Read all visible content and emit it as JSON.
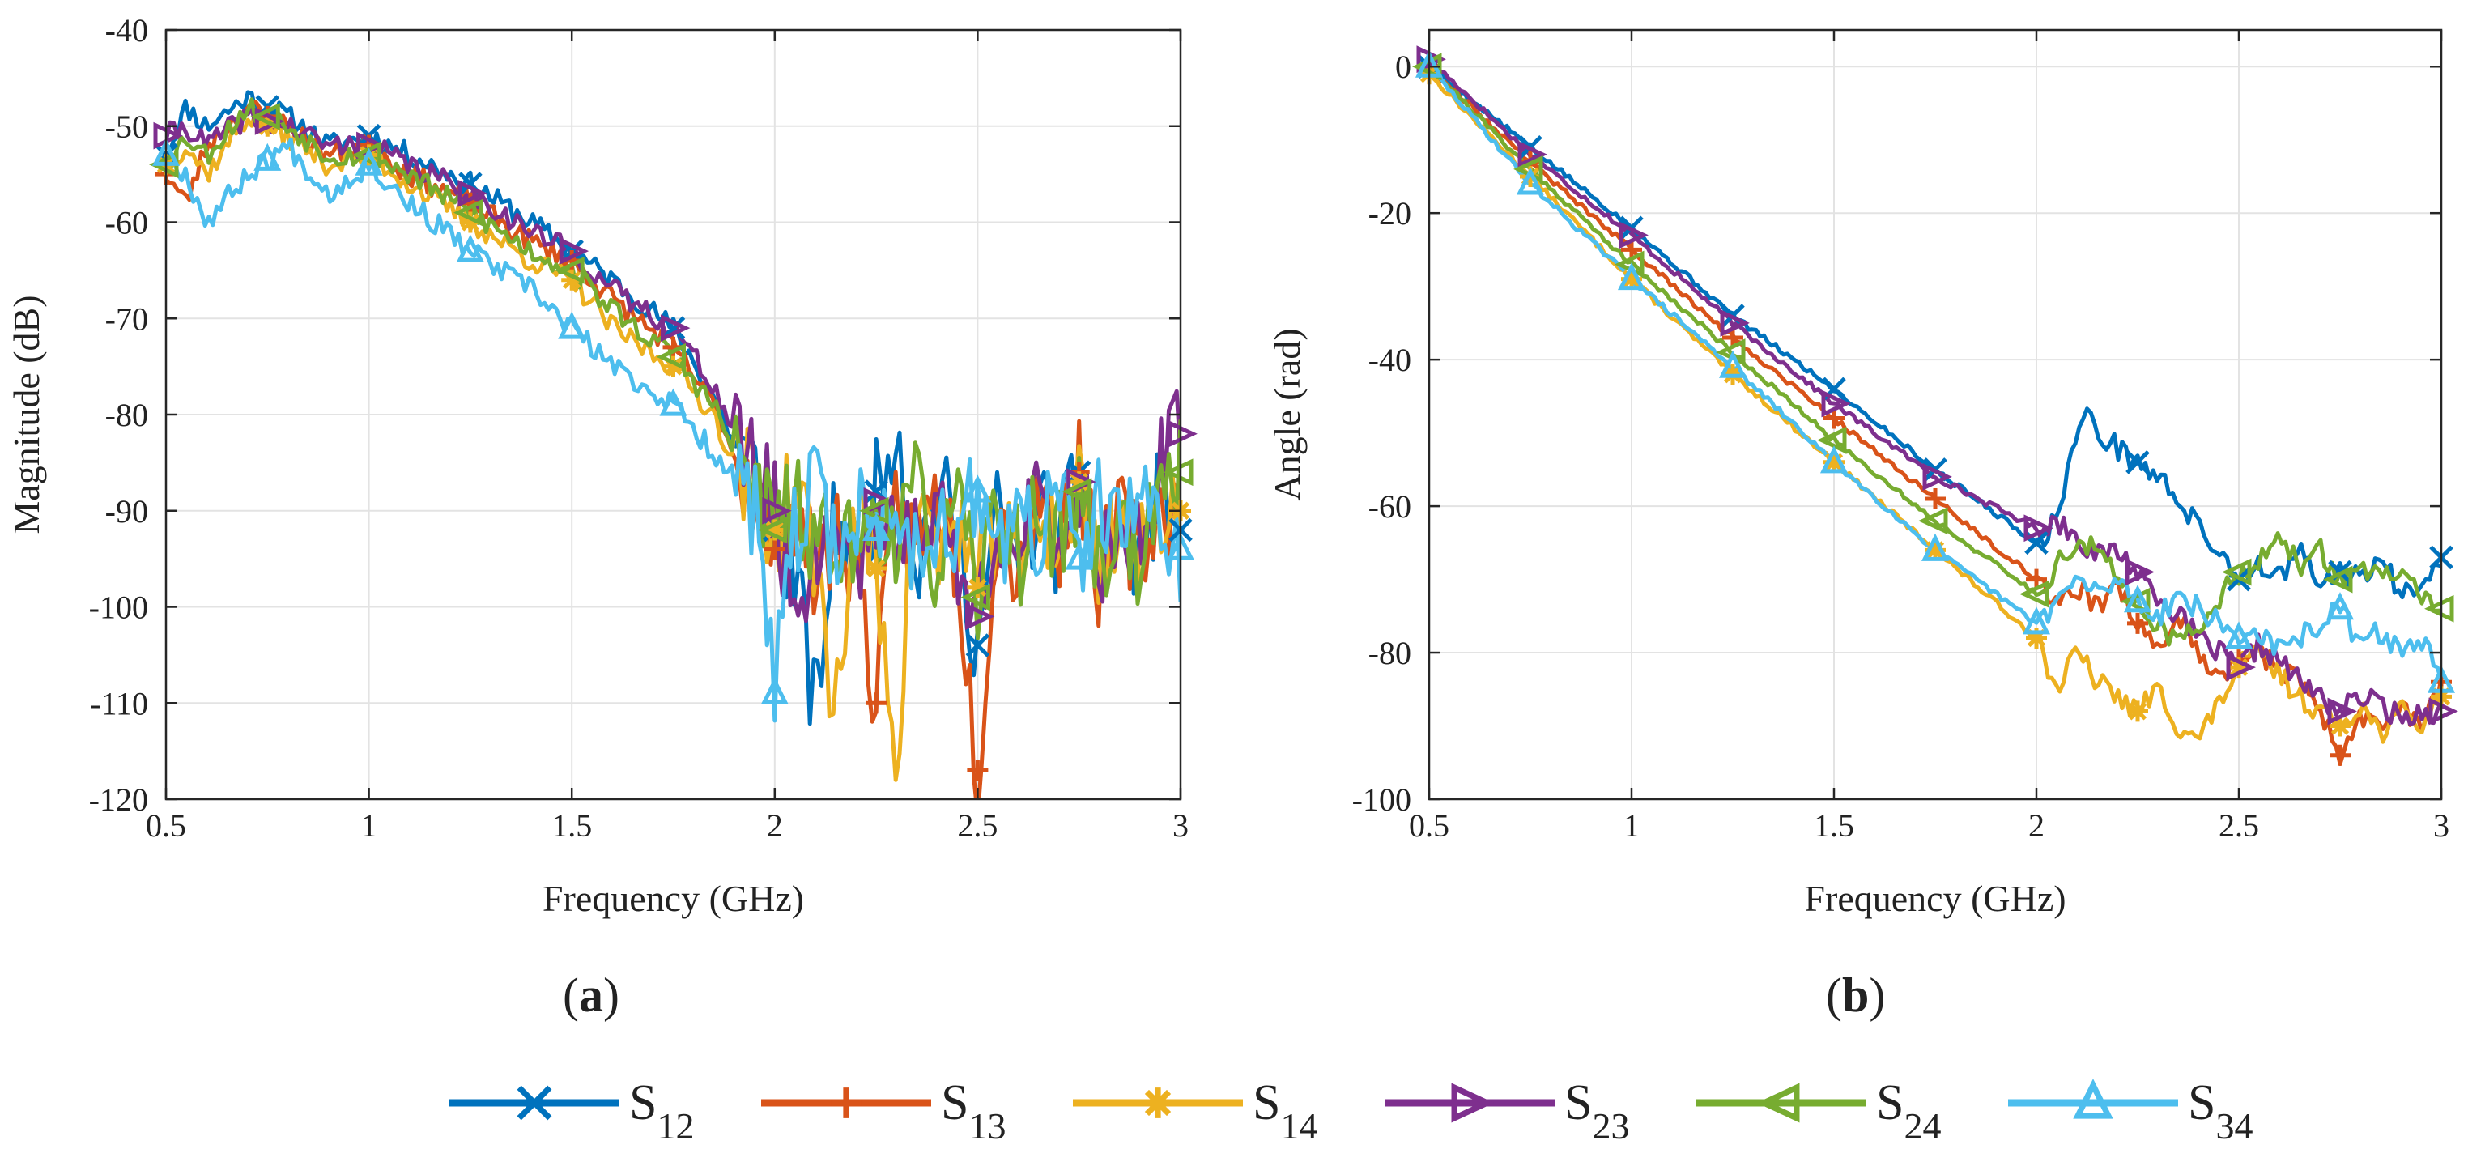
{
  "colors": {
    "S12": "#0072BD",
    "S13": "#D95319",
    "S14": "#EDB120",
    "S23": "#7E2F8E",
    "S24": "#77AC30",
    "S34": "#4DBEEE",
    "grid": "#e3e3e3",
    "axis": "#262626"
  },
  "panel_labels": {
    "a": "a",
    "b": "b"
  },
  "legend": [
    {
      "key": "S12",
      "base": "S",
      "sub": "12",
      "marker": "x"
    },
    {
      "key": "S13",
      "base": "S",
      "sub": "13",
      "marker": "plus"
    },
    {
      "key": "S14",
      "base": "S",
      "sub": "14",
      "marker": "star"
    },
    {
      "key": "S23",
      "base": "S",
      "sub": "23",
      "marker": "tri-right"
    },
    {
      "key": "S24",
      "base": "S",
      "sub": "24",
      "marker": "tri-left"
    },
    {
      "key": "S34",
      "base": "S",
      "sub": "34",
      "marker": "tri-up"
    }
  ],
  "chart_data": [
    {
      "id": "a",
      "type": "line",
      "title": "",
      "xlabel": "Frequency (GHz)",
      "ylabel": "Magnitude (dB)",
      "xlim": [
        0.5,
        3
      ],
      "ylim": [
        -120,
        -40
      ],
      "xticks": [
        0.5,
        1,
        1.5,
        2,
        2.5,
        3
      ],
      "xtick_labels": [
        "0.5",
        "1",
        "1.5",
        "2",
        "2.5",
        "3"
      ],
      "yticks": [
        -120,
        -110,
        -100,
        -90,
        -80,
        -70,
        -60,
        -50,
        -40
      ],
      "ytick_labels": [
        "-120",
        "-110",
        "-100",
        "-90",
        "-80",
        "-70",
        "-60",
        "-50",
        "-40"
      ],
      "grid": true,
      "marker_x": [
        0.5,
        0.75,
        1,
        1.25,
        1.5,
        1.75,
        2,
        2.25,
        2.5,
        2.75,
        3
      ],
      "series": [
        {
          "key": "S12",
          "name": "S12",
          "marker": "x",
          "seed": 11,
          "x": [
            0.5,
            0.55,
            0.6,
            0.7,
            0.8,
            0.9,
            1.0,
            1.1,
            1.25,
            1.4,
            1.5,
            1.6,
            1.75,
            1.85,
            1.9,
            1.95,
            2.0,
            2.05,
            2.1,
            2.15,
            2.2,
            2.25,
            2.3,
            2.35,
            2.4,
            2.45,
            2.5,
            2.55,
            2.6,
            2.65,
            2.7,
            2.75,
            2.8,
            2.85,
            2.9,
            2.95,
            3.0
          ],
          "y": [
            -53,
            -48,
            -50,
            -47,
            -49,
            -52,
            -51,
            -53,
            -56,
            -60,
            -63,
            -66,
            -71,
            -78,
            -83,
            -86,
            -92,
            -96,
            -112,
            -90,
            -95,
            -88,
            -80,
            -96,
            -87,
            -93,
            -104,
            -90,
            -96,
            -89,
            -94,
            -86,
            -98,
            -90,
            -95,
            -88,
            -92
          ]
        },
        {
          "key": "S13",
          "name": "S13",
          "marker": "plus",
          "seed": 23,
          "x": [
            0.5,
            0.55,
            0.6,
            0.7,
            0.8,
            0.9,
            1.0,
            1.1,
            1.25,
            1.4,
            1.5,
            1.6,
            1.75,
            1.85,
            1.9,
            1.95,
            2.0,
            2.05,
            2.1,
            2.15,
            2.2,
            2.25,
            2.3,
            2.35,
            2.4,
            2.45,
            2.5,
            2.55,
            2.6,
            2.65,
            2.7,
            2.75,
            2.8,
            2.85,
            2.9,
            2.95,
            3.0
          ],
          "y": [
            -55,
            -58,
            -52,
            -48,
            -50,
            -53,
            -52,
            -55,
            -58,
            -62,
            -64,
            -68,
            -73,
            -79,
            -84,
            -88,
            -94,
            -90,
            -97,
            -92,
            -95,
            -110,
            -89,
            -94,
            -88,
            -95,
            -117,
            -90,
            -96,
            -88,
            -93,
            -86,
            -97,
            -91,
            -95,
            -89,
            -90
          ]
        },
        {
          "key": "S14",
          "name": "S14",
          "marker": "star",
          "seed": 37,
          "x": [
            0.5,
            0.55,
            0.6,
            0.7,
            0.8,
            0.9,
            1.0,
            1.1,
            1.25,
            1.4,
            1.5,
            1.6,
            1.75,
            1.85,
            1.9,
            1.95,
            2.0,
            2.05,
            2.1,
            2.15,
            2.2,
            2.25,
            2.3,
            2.35,
            2.4,
            2.45,
            2.5,
            2.55,
            2.6,
            2.65,
            2.7,
            2.75,
            2.8,
            2.85,
            2.9,
            2.95,
            3.0
          ],
          "y": [
            -54,
            -52,
            -55,
            -49,
            -51,
            -54,
            -53,
            -56,
            -60,
            -64,
            -66,
            -71,
            -75,
            -80,
            -85,
            -87,
            -92,
            -88,
            -95,
            -111,
            -90,
            -96,
            -115,
            -88,
            -95,
            -91,
            -98,
            -90,
            -97,
            -89,
            -94,
            -87,
            -96,
            -90,
            -95,
            -89,
            -90
          ]
        },
        {
          "key": "S23",
          "name": "S23",
          "marker": "tri-right",
          "seed": 41,
          "x": [
            0.5,
            0.55,
            0.6,
            0.7,
            0.8,
            0.9,
            1.0,
            1.1,
            1.25,
            1.4,
            1.5,
            1.6,
            1.75,
            1.85,
            1.9,
            1.95,
            2.0,
            2.05,
            2.1,
            2.15,
            2.2,
            2.25,
            2.3,
            2.35,
            2.4,
            2.45,
            2.5,
            2.55,
            2.6,
            2.65,
            2.7,
            2.75,
            2.8,
            2.85,
            2.9,
            2.95,
            3.0
          ],
          "y": [
            -51,
            -50,
            -52,
            -49,
            -50,
            -52,
            -52,
            -54,
            -57,
            -61,
            -63,
            -67,
            -71,
            -77,
            -82,
            -86,
            -90,
            -100,
            -94,
            -91,
            -96,
            -89,
            -95,
            -92,
            -88,
            -97,
            -101,
            -90,
            -95,
            -89,
            -94,
            -87,
            -96,
            -90,
            -94,
            -86,
            -82
          ]
        },
        {
          "key": "S24",
          "name": "S24",
          "marker": "tri-left",
          "seed": 53,
          "x": [
            0.5,
            0.55,
            0.6,
            0.7,
            0.8,
            0.9,
            1.0,
            1.1,
            1.25,
            1.4,
            1.5,
            1.6,
            1.75,
            1.85,
            1.9,
            1.95,
            2.0,
            2.05,
            2.1,
            2.15,
            2.2,
            2.25,
            2.3,
            2.35,
            2.4,
            2.45,
            2.5,
            2.55,
            2.6,
            2.65,
            2.7,
            2.75,
            2.8,
            2.85,
            2.9,
            2.95,
            3.0
          ],
          "y": [
            -54,
            -51,
            -53,
            -48,
            -50,
            -53,
            -53,
            -55,
            -59,
            -63,
            -65,
            -69,
            -74,
            -79,
            -84,
            -87,
            -92,
            -89,
            -96,
            -91,
            -95,
            -90,
            -93,
            -88,
            -96,
            -90,
            -99,
            -89,
            -95,
            -90,
            -93,
            -88,
            -96,
            -91,
            -95,
            -90,
            -86
          ]
        },
        {
          "key": "S34",
          "name": "S34",
          "marker": "tri-up",
          "seed": 67,
          "x": [
            0.5,
            0.55,
            0.6,
            0.7,
            0.8,
            0.9,
            1.0,
            1.1,
            1.25,
            1.4,
            1.5,
            1.6,
            1.75,
            1.85,
            1.9,
            1.95,
            2.0,
            2.05,
            2.1,
            2.15,
            2.2,
            2.25,
            2.3,
            2.35,
            2.4,
            2.45,
            2.5,
            2.55,
            2.6,
            2.65,
            2.7,
            2.75,
            2.8,
            2.85,
            2.9,
            2.95,
            3.0
          ],
          "y": [
            -53,
            -55,
            -60,
            -55,
            -52,
            -57,
            -54,
            -58,
            -63,
            -67,
            -71,
            -75,
            -79,
            -84,
            -86,
            -90,
            -109,
            -92,
            -88,
            -94,
            -90,
            -92,
            -89,
            -95,
            -90,
            -93,
            -88,
            -94,
            -90,
            -93,
            -88,
            -95,
            -90,
            -93,
            -88,
            -92,
            -94
          ]
        }
      ]
    },
    {
      "id": "b",
      "type": "line",
      "title": "",
      "xlabel": "Frequency (GHz)",
      "ylabel": "Angle (rad)",
      "xlim": [
        0.5,
        3
      ],
      "ylim": [
        -100,
        5
      ],
      "xticks": [
        0.5,
        1,
        1.5,
        2,
        2.5,
        3
      ],
      "xtick_labels": [
        "0.5",
        "1",
        "1.5",
        "2",
        "2.5",
        "3"
      ],
      "yticks": [
        -100,
        -80,
        -60,
        -40,
        -20,
        0
      ],
      "ytick_labels": [
        "-100",
        "-80",
        "-60",
        "-40",
        "-20",
        "0"
      ],
      "grid": true,
      "marker_x": [
        0.5,
        0.75,
        1,
        1.25,
        1.5,
        1.75,
        2,
        2.25,
        2.5,
        2.75,
        3
      ],
      "series": [
        {
          "key": "S12",
          "name": "S12",
          "marker": "x",
          "seed": 5,
          "x": [
            0.5,
            0.75,
            1.0,
            1.25,
            1.5,
            1.75,
            2.0,
            2.05,
            2.08,
            2.12,
            2.15,
            2.2,
            2.25,
            2.3,
            2.35,
            2.4,
            2.45,
            2.5,
            2.55,
            2.6,
            2.65,
            2.7,
            2.75,
            2.8,
            2.85,
            2.9,
            2.95,
            3.0
          ],
          "y": [
            0,
            -11,
            -22,
            -34,
            -44,
            -55,
            -65,
            -62,
            -54,
            -47,
            -50,
            -52,
            -54,
            -56,
            -59,
            -63,
            -66,
            -70,
            -68,
            -70,
            -66,
            -71,
            -69,
            -70,
            -67,
            -72,
            -70,
            -67
          ]
        },
        {
          "key": "S13",
          "name": "S13",
          "marker": "plus",
          "seed": 9,
          "x": [
            0.5,
            0.75,
            1.0,
            1.25,
            1.5,
            1.75,
            2.0,
            2.05,
            2.1,
            2.15,
            2.2,
            2.25,
            2.3,
            2.35,
            2.4,
            2.45,
            2.5,
            2.55,
            2.6,
            2.65,
            2.7,
            2.75,
            2.8,
            2.85,
            2.9,
            2.95,
            3.0
          ],
          "y": [
            0,
            -13,
            -25,
            -37,
            -48,
            -59,
            -70,
            -73,
            -71,
            -74,
            -70,
            -76,
            -79,
            -75,
            -80,
            -83,
            -81,
            -80,
            -82,
            -84,
            -88,
            -94,
            -89,
            -90,
            -87,
            -90,
            -84
          ]
        },
        {
          "key": "S14",
          "name": "S14",
          "marker": "star",
          "seed": 13,
          "x": [
            0.5,
            0.75,
            1.0,
            1.25,
            1.5,
            1.75,
            2.0,
            2.05,
            2.1,
            2.15,
            2.2,
            2.25,
            2.3,
            2.35,
            2.4,
            2.45,
            2.5,
            2.55,
            2.6,
            2.65,
            2.7,
            2.75,
            2.8,
            2.85,
            2.9,
            2.95,
            3.0
          ],
          "y": [
            -1,
            -15,
            -29,
            -42,
            -54,
            -66,
            -78,
            -85,
            -80,
            -84,
            -86,
            -88,
            -85,
            -90,
            -92,
            -87,
            -82,
            -80,
            -83,
            -86,
            -88,
            -90,
            -87,
            -91,
            -88,
            -90,
            -86
          ]
        },
        {
          "key": "S23",
          "name": "S23",
          "marker": "tri-right",
          "seed": 17,
          "x": [
            0.5,
            0.75,
            1.0,
            1.25,
            1.5,
            1.75,
            2.0,
            2.05,
            2.1,
            2.15,
            2.2,
            2.25,
            2.3,
            2.35,
            2.4,
            2.45,
            2.5,
            2.55,
            2.6,
            2.65,
            2.7,
            2.75,
            2.8,
            2.85,
            2.9,
            2.95,
            3.0
          ],
          "y": [
            1,
            -12,
            -23,
            -35,
            -46,
            -56,
            -63,
            -62,
            -64,
            -67,
            -66,
            -69,
            -72,
            -75,
            -78,
            -80,
            -82,
            -79,
            -81,
            -84,
            -86,
            -88,
            -86,
            -87,
            -89,
            -88,
            -88
          ]
        },
        {
          "key": "S24",
          "name": "S24",
          "marker": "tri-left",
          "seed": 21,
          "x": [
            0.5,
            0.75,
            1.0,
            1.25,
            1.5,
            1.75,
            2.0,
            2.05,
            2.1,
            2.15,
            2.2,
            2.25,
            2.3,
            2.35,
            2.4,
            2.45,
            2.5,
            2.55,
            2.6,
            2.65,
            2.7,
            2.75,
            2.8,
            2.85,
            2.9,
            2.95,
            3.0
          ],
          "y": [
            0,
            -14,
            -27,
            -39,
            -51,
            -62,
            -72,
            -68,
            -65,
            -66,
            -70,
            -73,
            -76,
            -79,
            -76,
            -73,
            -69,
            -67,
            -65,
            -68,
            -66,
            -70,
            -68,
            -70,
            -69,
            -72,
            -74
          ]
        },
        {
          "key": "S34",
          "name": "S34",
          "marker": "tri-up",
          "seed": 29,
          "x": [
            0.5,
            0.75,
            1.0,
            1.25,
            1.5,
            1.75,
            2.0,
            2.05,
            2.1,
            2.15,
            2.2,
            2.25,
            2.3,
            2.35,
            2.4,
            2.45,
            2.5,
            2.55,
            2.6,
            2.65,
            2.7,
            2.75,
            2.8,
            2.85,
            2.9,
            2.95,
            3.0
          ],
          "y": [
            0,
            -16,
            -29,
            -41,
            -54,
            -66,
            -76,
            -73,
            -70,
            -72,
            -70,
            -73,
            -75,
            -72,
            -74,
            -76,
            -78,
            -77,
            -80,
            -78,
            -76,
            -74,
            -79,
            -77,
            -80,
            -78,
            -84
          ]
        }
      ]
    }
  ]
}
